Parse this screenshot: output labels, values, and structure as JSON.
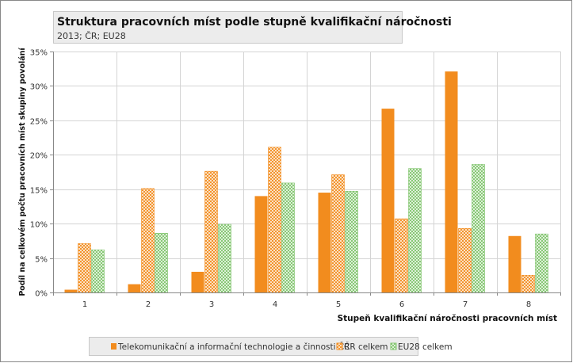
{
  "chart_data": {
    "type": "bar",
    "title": "Struktura pracovních míst podle stupně kvalifikační náročnosti",
    "subtitle": "2013; ČR; EU28",
    "xlabel": "Stupeň kvalifikační náročnosti pracovních míst",
    "ylabel": "Podíl na celkovém počtu pracovních míst skupiny povolání",
    "ylim": [
      0,
      35
    ],
    "yticks": [
      0,
      5,
      10,
      15,
      20,
      25,
      30,
      35
    ],
    "ytick_suffix": "%",
    "grid": true,
    "legend_position": "bottom",
    "categories": [
      "1",
      "2",
      "3",
      "4",
      "5",
      "6",
      "7",
      "8"
    ],
    "series": [
      {
        "name": "Telekomunikační a informační technologie a činnosti ČR",
        "color": "#f28c1e",
        "fill": "solid",
        "values": [
          0.4,
          1.2,
          3.0,
          14.0,
          14.5,
          26.7,
          32.1,
          8.2
        ]
      },
      {
        "name": "ČR celkem",
        "color": "#f28c1e",
        "fill": "hatch",
        "values": [
          7.1,
          15.1,
          17.6,
          21.1,
          17.1,
          10.7,
          9.3,
          2.5
        ]
      },
      {
        "name": "EU28 celkem",
        "color": "#7fc46b",
        "fill": "hatch",
        "values": [
          6.2,
          8.6,
          9.9,
          15.9,
          14.7,
          18.0,
          18.6,
          8.5
        ]
      }
    ]
  }
}
